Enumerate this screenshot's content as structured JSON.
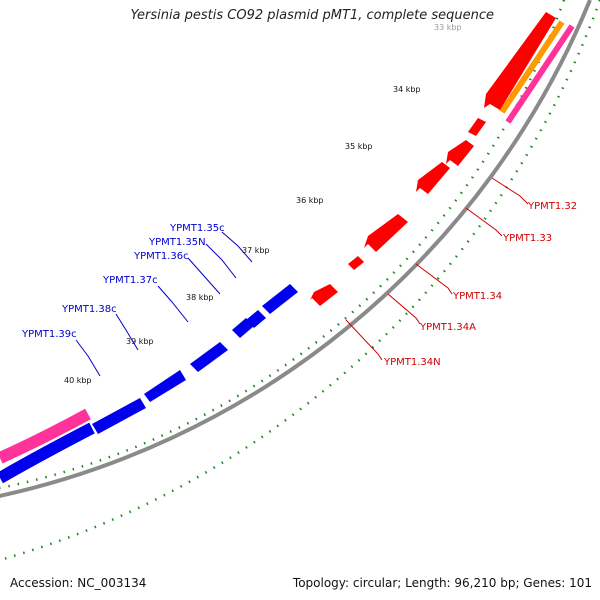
{
  "title": "Yersinia pestis CO92 plasmid pMT1, complete sequence",
  "footer": {
    "accession": "Accession: NC_003134",
    "summary": "Topology: circular; Length: 96,210 bp; Genes: 101"
  },
  "colors": {
    "backbone": "#8a8a8a",
    "forward_gene": "#ff0000",
    "reverse_gene": "#0000ff",
    "pink_feature": "#ff3399",
    "orange_feature": "#ff9900",
    "tick": "#1a7a1a",
    "red_label": "#d00000",
    "blue_label": "#0000cc"
  },
  "ticks": [
    "33 kbp",
    "34 kbp",
    "35 kbp",
    "36 kbp",
    "37 kbp",
    "38 kbp",
    "39 kbp",
    "40 kbp"
  ],
  "gene_labels": {
    "forward": [
      "YPMT1.32",
      "YPMT1.33",
      "YPMT1.34",
      "YPMT1.34A",
      "YPMT1.34N"
    ],
    "reverse": [
      "YPMT1.35c",
      "YPMT1.35N",
      "YPMT1.36c",
      "YPMT1.37c",
      "YPMT1.38c",
      "YPMT1.39c"
    ]
  }
}
